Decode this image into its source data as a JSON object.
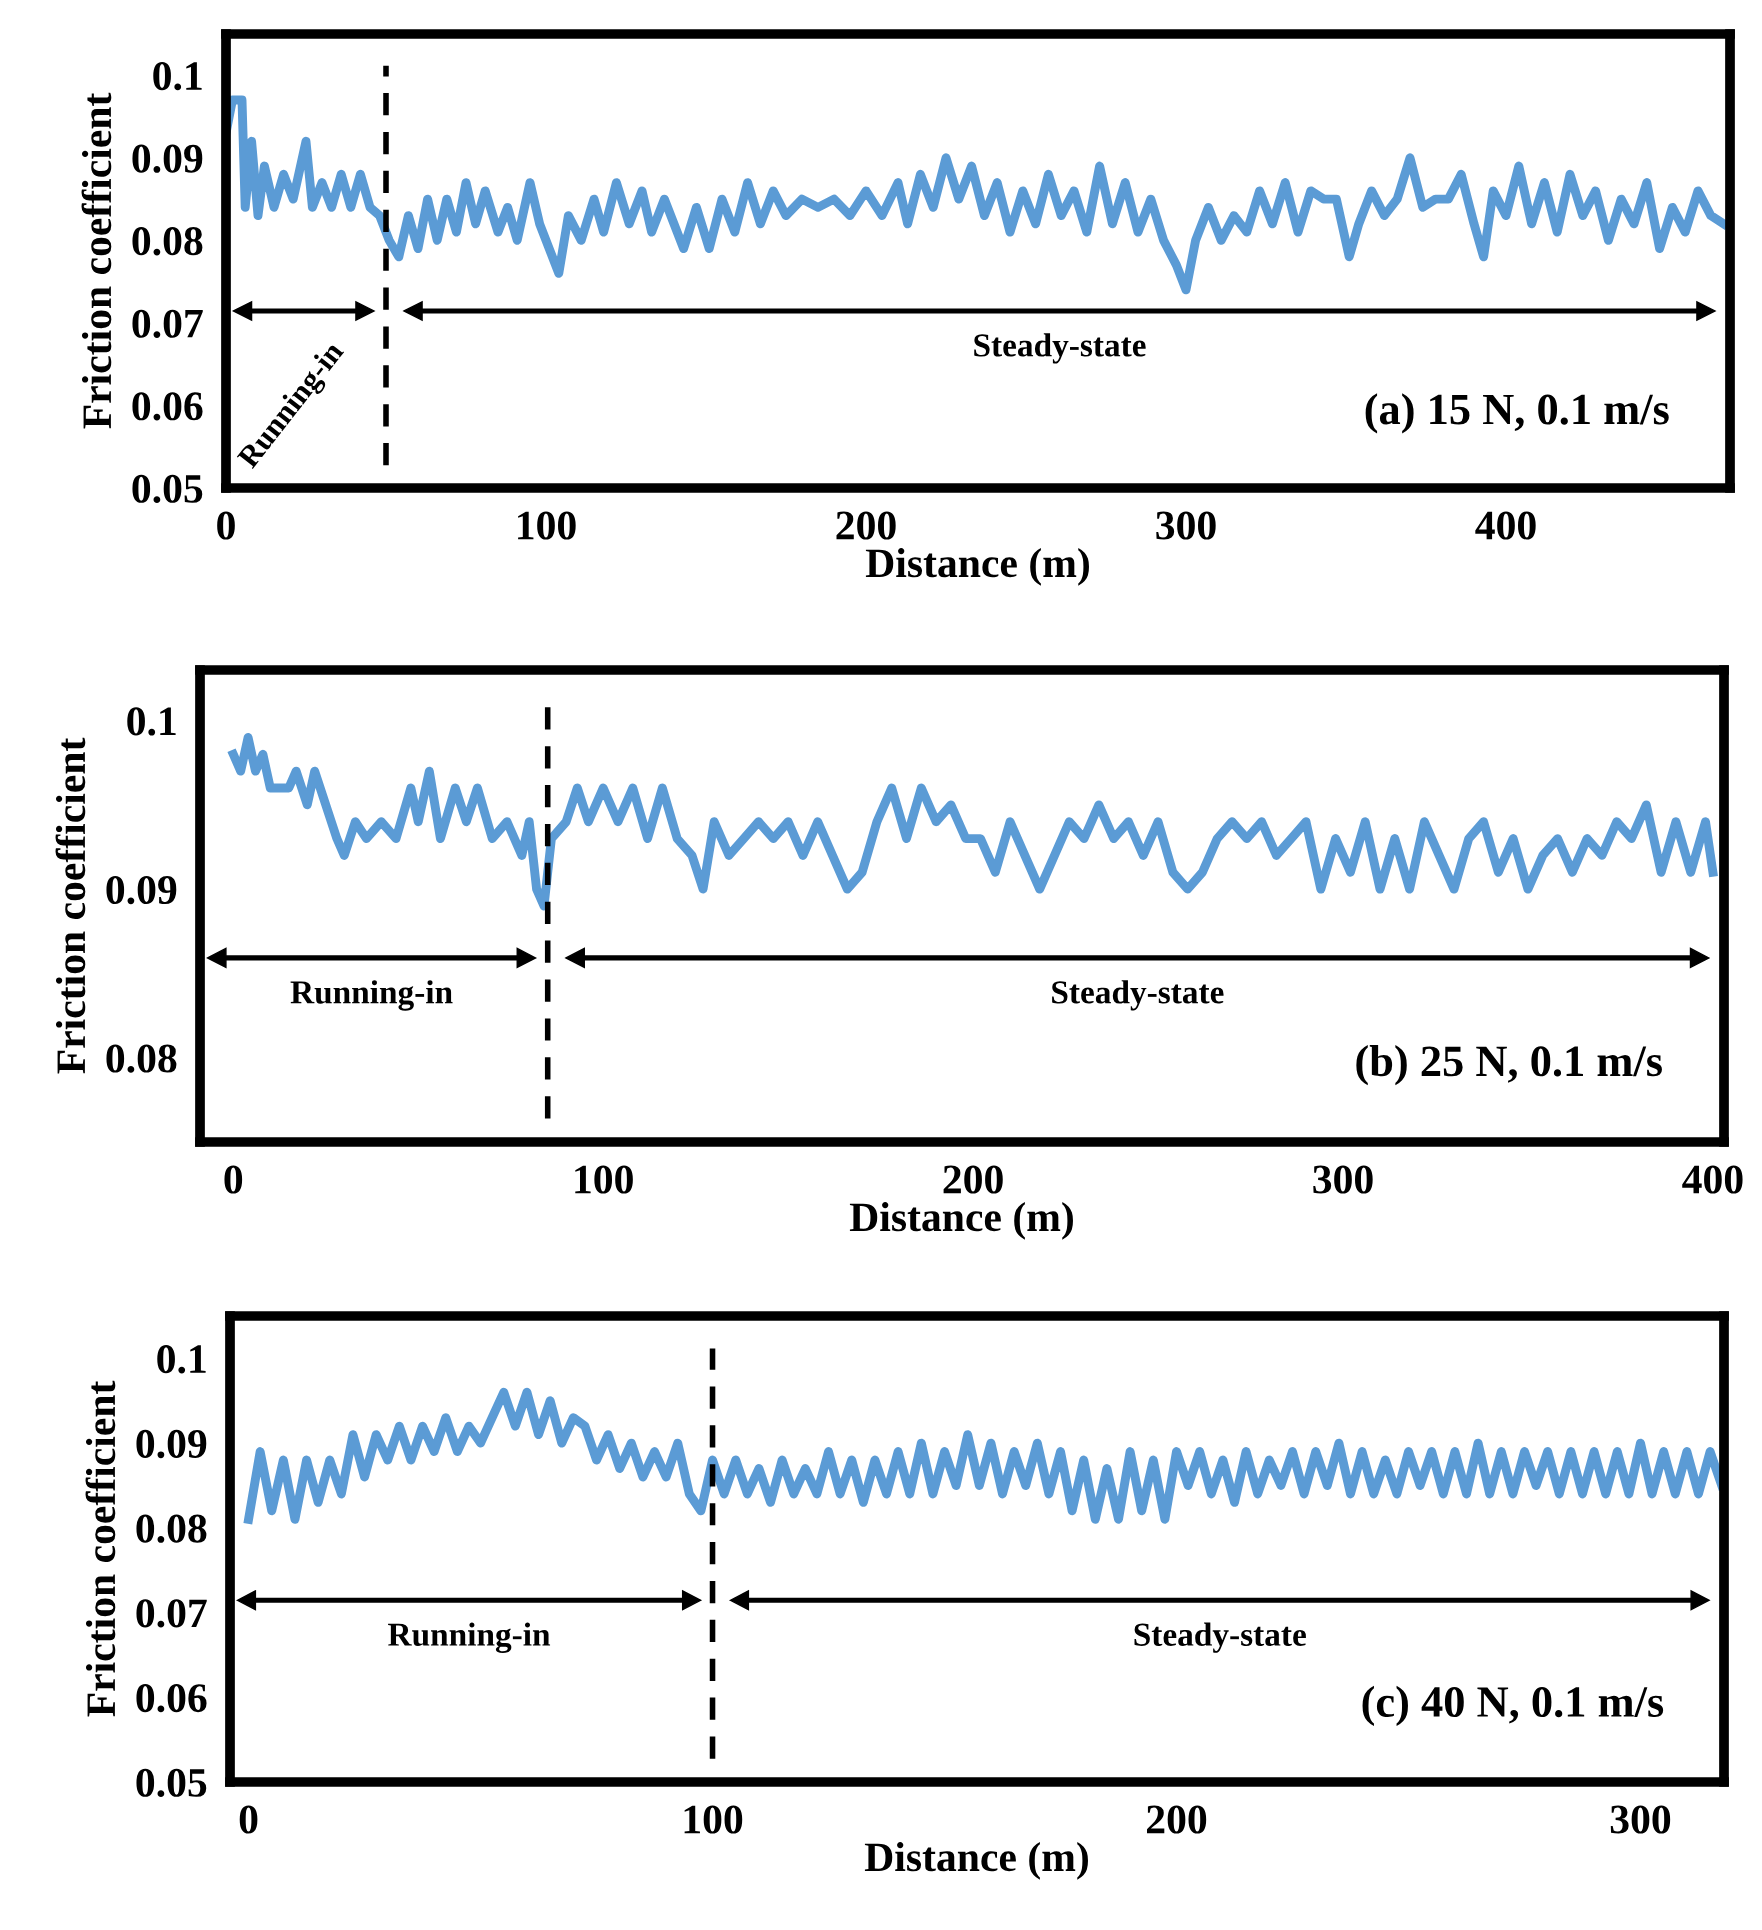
{
  "chart_data": [
    {
      "type": "line",
      "xlabel": "Distance (m)",
      "ylabel": "Friction coefficient",
      "xlim": [
        0,
        470
      ],
      "xticks": [
        0,
        100,
        200,
        300,
        400
      ],
      "ylim": [
        0.05,
        0.105
      ],
      "yticks": [
        0.05,
        0.06,
        0.07,
        0.08,
        0.09,
        0.1
      ],
      "series": [
        {
          "color": "#5b9bd5",
          "x": [
            0,
            2,
            5,
            6,
            8,
            10,
            12,
            15,
            18,
            21,
            25,
            27,
            30,
            33,
            36,
            39,
            42,
            45,
            48,
            51,
            54,
            57,
            60,
            63,
            66,
            69,
            72,
            75,
            78,
            81,
            85,
            88,
            91,
            95,
            98,
            102,
            104,
            107,
            111,
            115,
            118,
            122,
            126,
            130,
            133,
            137,
            140,
            143,
            147,
            151,
            155,
            159,
            163,
            167,
            171,
            175,
            180,
            185,
            190,
            195,
            200,
            205,
            210,
            213,
            217,
            221,
            225,
            229,
            233,
            237,
            241,
            245,
            249,
            253,
            257,
            261,
            265,
            269,
            273,
            277,
            281,
            285,
            289,
            293,
            297,
            300,
            303,
            307,
            311,
            315,
            319,
            323,
            327,
            331,
            335,
            339,
            343,
            347,
            351,
            354,
            358,
            362,
            366,
            370,
            374,
            378,
            382,
            386,
            390,
            393,
            396,
            400,
            404,
            408,
            412,
            416,
            420,
            424,
            428,
            432,
            436,
            440,
            444,
            448,
            452,
            456,
            460,
            464,
            468
          ],
          "values": [
            0.093,
            0.097,
            0.097,
            0.084,
            0.092,
            0.083,
            0.089,
            0.084,
            0.088,
            0.085,
            0.092,
            0.084,
            0.087,
            0.084,
            0.088,
            0.084,
            0.088,
            0.084,
            0.083,
            0.08,
            0.078,
            0.083,
            0.079,
            0.085,
            0.08,
            0.085,
            0.081,
            0.087,
            0.082,
            0.086,
            0.081,
            0.084,
            0.08,
            0.087,
            0.082,
            0.078,
            0.076,
            0.083,
            0.08,
            0.085,
            0.081,
            0.087,
            0.082,
            0.086,
            0.081,
            0.085,
            0.082,
            0.079,
            0.084,
            0.079,
            0.085,
            0.081,
            0.087,
            0.082,
            0.086,
            0.083,
            0.085,
            0.084,
            0.085,
            0.083,
            0.086,
            0.083,
            0.087,
            0.082,
            0.088,
            0.084,
            0.09,
            0.085,
            0.089,
            0.083,
            0.087,
            0.081,
            0.086,
            0.082,
            0.088,
            0.083,
            0.086,
            0.081,
            0.089,
            0.082,
            0.087,
            0.081,
            0.085,
            0.08,
            0.077,
            0.074,
            0.08,
            0.084,
            0.08,
            0.083,
            0.081,
            0.086,
            0.082,
            0.087,
            0.081,
            0.086,
            0.085,
            0.085,
            0.078,
            0.082,
            0.086,
            0.083,
            0.085,
            0.09,
            0.084,
            0.085,
            0.085,
            0.088,
            0.082,
            0.078,
            0.086,
            0.083,
            0.089,
            0.082,
            0.087,
            0.081,
            0.088,
            0.083,
            0.086,
            0.08,
            0.085,
            0.082,
            0.087,
            0.079,
            0.084,
            0.081,
            0.086,
            0.083,
            0.082
          ]
        }
      ],
      "ref_lines": [
        {
          "axis": "x",
          "value": 50,
          "color": "#000000",
          "line_style": "dashed"
        }
      ],
      "annotations": [
        "Running-in",
        "Steady-state",
        "(a) 15 N, 0.1 m/s"
      ]
    },
    {
      "type": "line",
      "xlabel": "Distance (m)",
      "ylabel": "Friction coefficient",
      "xlim": [
        -9,
        403
      ],
      "xticks": [
        0,
        100,
        200,
        300,
        400
      ],
      "ylim": [
        0.075,
        0.103
      ],
      "yticks": [
        0.08,
        0.09,
        0.1
      ],
      "series": [
        {
          "color": "#5b9bd5",
          "x": [
            0,
            2,
            4,
            6,
            8,
            10,
            15,
            17,
            20,
            22,
            25,
            28,
            30,
            33,
            36,
            40,
            44,
            48,
            50,
            53,
            56,
            60,
            63,
            66,
            70,
            74,
            78,
            80,
            82,
            84,
            86,
            90,
            93,
            96,
            100,
            104,
            108,
            112,
            116,
            120,
            124,
            127,
            130,
            134,
            138,
            142,
            146,
            150,
            154,
            158,
            162,
            166,
            170,
            174,
            178,
            182,
            186,
            190,
            194,
            198,
            202,
            206,
            210,
            214,
            218,
            222,
            226,
            230,
            234,
            238,
            242,
            246,
            250,
            254,
            258,
            262,
            266,
            270,
            274,
            278,
            282,
            286,
            290,
            294,
            298,
            302,
            306,
            310,
            314,
            318,
            322,
            326,
            330,
            334,
            338,
            342,
            346,
            350,
            354,
            358,
            362,
            366,
            370,
            374,
            378,
            382,
            386,
            390,
            394,
            398,
            400
          ],
          "values": [
            0.098,
            0.097,
            0.099,
            0.097,
            0.098,
            0.096,
            0.096,
            0.097,
            0.095,
            0.097,
            0.095,
            0.093,
            0.092,
            0.094,
            0.093,
            0.094,
            0.093,
            0.096,
            0.094,
            0.097,
            0.093,
            0.096,
            0.094,
            0.096,
            0.093,
            0.094,
            0.092,
            0.094,
            0.09,
            0.089,
            0.093,
            0.094,
            0.096,
            0.094,
            0.096,
            0.094,
            0.096,
            0.093,
            0.096,
            0.093,
            0.092,
            0.09,
            0.094,
            0.092,
            0.093,
            0.094,
            0.093,
            0.094,
            0.092,
            0.094,
            0.092,
            0.09,
            0.091,
            0.094,
            0.096,
            0.093,
            0.096,
            0.094,
            0.095,
            0.093,
            0.093,
            0.091,
            0.094,
            0.092,
            0.09,
            0.092,
            0.094,
            0.093,
            0.095,
            0.093,
            0.094,
            0.092,
            0.094,
            0.091,
            0.09,
            0.091,
            0.093,
            0.094,
            0.093,
            0.094,
            0.092,
            0.093,
            0.094,
            0.09,
            0.093,
            0.091,
            0.094,
            0.09,
            0.093,
            0.09,
            0.094,
            0.092,
            0.09,
            0.093,
            0.094,
            0.091,
            0.093,
            0.09,
            0.092,
            0.093,
            0.091,
            0.093,
            0.092,
            0.094,
            0.093,
            0.095,
            0.091,
            0.094,
            0.091,
            0.094,
            0.091
          ]
        }
      ],
      "ref_lines": [
        {
          "axis": "x",
          "value": 85,
          "color": "#000000",
          "line_style": "dashed"
        }
      ],
      "annotations": [
        "Running-in",
        "Steady-state",
        "(b) 25 N, 0.1 m/s"
      ]
    },
    {
      "type": "line",
      "xlabel": "Distance (m)",
      "ylabel": "Friction coefficient",
      "xlim": [
        -4,
        318
      ],
      "xticks": [
        0,
        100,
        200,
        300
      ],
      "ylim": [
        0.05,
        0.105
      ],
      "yticks": [
        0.05,
        0.06,
        0.07,
        0.08,
        0.09,
        0.1
      ],
      "series": [
        {
          "color": "#5b9bd5",
          "x": [
            0,
            2.5,
            5,
            7.5,
            10,
            12.5,
            15,
            17.5,
            20,
            22.5,
            25,
            27.5,
            30,
            32.5,
            35,
            37.5,
            40,
            42.5,
            45,
            47.5,
            50,
            52.5,
            55,
            57.5,
            60,
            62.5,
            65,
            67.5,
            70,
            72.5,
            75,
            77.5,
            80,
            82.5,
            85,
            87.5,
            90,
            92.5,
            95,
            97.5,
            100,
            102.5,
            105,
            107.5,
            110,
            112.5,
            115,
            117.5,
            120,
            122.5,
            125,
            127.5,
            130,
            132.5,
            135,
            137.5,
            140,
            142.5,
            145,
            147.5,
            150,
            152.5,
            155,
            157.5,
            160,
            162.5,
            165,
            167.5,
            170,
            172.5,
            175,
            177.5,
            180,
            182.5,
            185,
            187.5,
            190,
            192.5,
            195,
            197.5,
            200,
            202.5,
            205,
            207.5,
            210,
            212.5,
            215,
            217.5,
            220,
            222.5,
            225,
            227.5,
            230,
            232.5,
            235,
            237.5,
            240,
            242.5,
            245,
            247.5,
            250,
            252.5,
            255,
            257.5,
            260,
            262.5,
            265,
            267.5,
            270,
            272.5,
            275,
            277.5,
            280,
            282.5,
            285,
            287.5,
            290,
            292.5,
            295,
            297.5,
            300,
            302.5,
            305,
            307.5,
            310,
            312.5,
            315,
            317.5
          ],
          "values": [
            0.081,
            0.089,
            0.082,
            0.088,
            0.081,
            0.088,
            0.083,
            0.088,
            0.084,
            0.091,
            0.086,
            0.091,
            0.088,
            0.092,
            0.088,
            0.092,
            0.089,
            0.093,
            0.089,
            0.092,
            0.09,
            0.093,
            0.096,
            0.092,
            0.096,
            0.091,
            0.095,
            0.09,
            0.093,
            0.092,
            0.088,
            0.091,
            0.087,
            0.09,
            0.086,
            0.089,
            0.086,
            0.09,
            0.084,
            0.082,
            0.088,
            0.084,
            0.088,
            0.084,
            0.087,
            0.083,
            0.088,
            0.084,
            0.087,
            0.084,
            0.089,
            0.084,
            0.088,
            0.083,
            0.088,
            0.084,
            0.089,
            0.084,
            0.09,
            0.084,
            0.089,
            0.085,
            0.091,
            0.085,
            0.09,
            0.084,
            0.089,
            0.085,
            0.09,
            0.084,
            0.089,
            0.082,
            0.088,
            0.081,
            0.087,
            0.081,
            0.089,
            0.082,
            0.088,
            0.081,
            0.089,
            0.085,
            0.089,
            0.084,
            0.088,
            0.083,
            0.089,
            0.084,
            0.088,
            0.085,
            0.089,
            0.084,
            0.089,
            0.085,
            0.09,
            0.084,
            0.089,
            0.084,
            0.088,
            0.084,
            0.089,
            0.085,
            0.089,
            0.084,
            0.089,
            0.084,
            0.09,
            0.084,
            0.089,
            0.084,
            0.089,
            0.085,
            0.089,
            0.084,
            0.089,
            0.084,
            0.089,
            0.084,
            0.089,
            0.084,
            0.09,
            0.084,
            0.089,
            0.084,
            0.089,
            0.084,
            0.089,
            0.085
          ]
        }
      ],
      "ref_lines": [
        {
          "axis": "x",
          "value": 100,
          "color": "#000000",
          "line_style": "dashed"
        }
      ],
      "annotations": [
        "Running-in",
        "Steady-state",
        "(c) 40 N, 0.1 m/s"
      ]
    }
  ]
}
